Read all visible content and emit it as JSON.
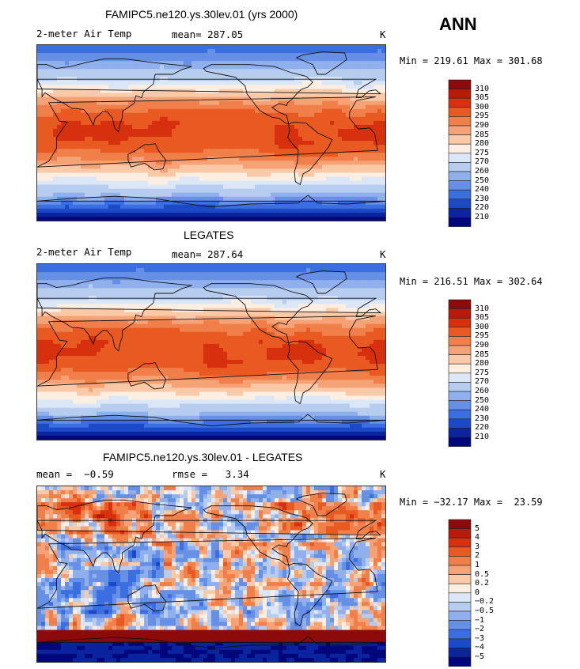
{
  "season": "ANN",
  "chart_data": [
    {
      "type": "heatmap",
      "title": "FAMIPC5.ne120.ys.30lev.01 (yrs 2000)",
      "variable": "2-meter Air Temp",
      "mean_text": "mean= 287.05",
      "units": "K",
      "minmax_text": "Min = 219.61 Max = 301.68",
      "min": 219.61,
      "max": 301.68,
      "levels": [
        "310",
        "305",
        "300",
        "295",
        "290",
        "285",
        "280",
        "275",
        "270",
        "260",
        "250",
        "240",
        "230",
        "220",
        "210"
      ],
      "colors": [
        "#8c0a0a",
        "#b81a0c",
        "#d7300f",
        "#e85a22",
        "#f07f4a",
        "#f5a376",
        "#fac9a8",
        "#fdeee2",
        "#dbe7f7",
        "#b7cdf0",
        "#8fb0ec",
        "#6690e6",
        "#3b6ee0",
        "#1c49c8",
        "#0a239e",
        "#00077a"
      ],
      "field": "temperature"
    },
    {
      "type": "heatmap",
      "title": "LEGATES",
      "variable": "2-meter Air Temp",
      "mean_text": "mean= 287.64",
      "units": "K",
      "minmax_text": "Min = 216.51 Max = 302.64",
      "min": 216.51,
      "max": 302.64,
      "levels": [
        "310",
        "305",
        "300",
        "295",
        "290",
        "285",
        "280",
        "275",
        "270",
        "260",
        "250",
        "240",
        "230",
        "220",
        "210"
      ],
      "colors": [
        "#8c0a0a",
        "#b81a0c",
        "#d7300f",
        "#e85a22",
        "#f07f4a",
        "#f5a376",
        "#fac9a8",
        "#fdeee2",
        "#dbe7f7",
        "#b7cdf0",
        "#8fb0ec",
        "#6690e6",
        "#3b6ee0",
        "#1c49c8",
        "#0a239e",
        "#00077a"
      ],
      "field": "temperature"
    },
    {
      "type": "heatmap",
      "title": "FAMIPC5.ne120.ys.30lev.01 - LEGATES",
      "mean_text": "mean =  −0.59",
      "rmse_text": "rmse =   3.34",
      "units": "K",
      "minmax_text": "Min = −32.17 Max =  23.59",
      "min": -32.17,
      "max": 23.59,
      "levels": [
        "5",
        "4",
        "3",
        "2",
        "1",
        "0.5",
        "0.2",
        "0",
        "−0.2",
        "−0.5",
        "−1",
        "−2",
        "−3",
        "−4",
        "−5"
      ],
      "colors": [
        "#8c0a0a",
        "#b81a0c",
        "#d7300f",
        "#e85a22",
        "#f07f4a",
        "#f5a376",
        "#fac9a8",
        "#fdeee2",
        "#dbe7f7",
        "#b7cdf0",
        "#8fb0ec",
        "#6690e6",
        "#3b6ee0",
        "#1c49c8",
        "#0a239e",
        "#00077a"
      ],
      "field": "difference"
    }
  ]
}
